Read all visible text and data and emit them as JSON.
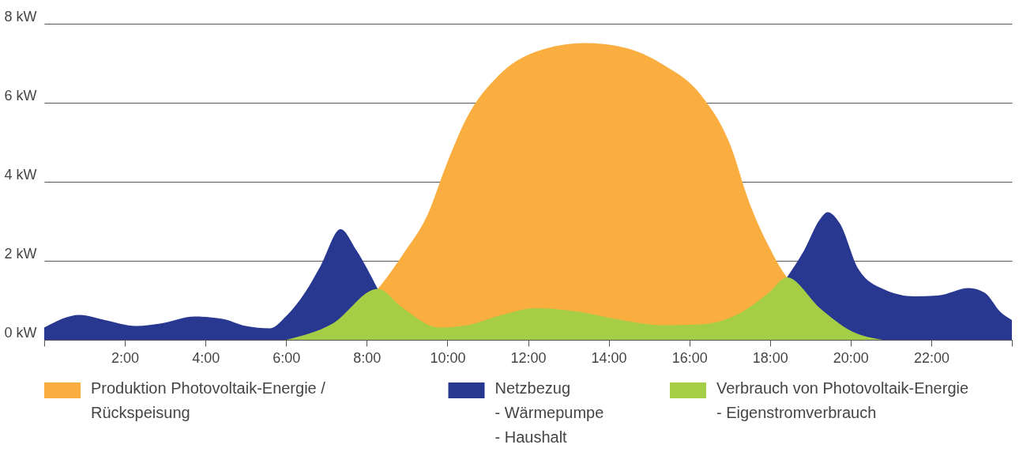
{
  "chart_data": {
    "type": "area",
    "series": [
      {
        "name": "Produktion Photovoltaik-Energie /\nRückspeisung",
        "color": "#f9ae3f",
        "x": [
          6,
          8.27,
          8.9,
          9.5,
          10,
          10.47,
          11.25,
          12.22,
          13.4,
          14.37,
          15.34,
          16.3,
          16.99,
          17.5,
          17.97,
          18.42,
          20.8
        ],
        "values": [
          0,
          1.29,
          2.17,
          3.15,
          4.5,
          5.6,
          6.67,
          7.3,
          7.51,
          7.4,
          6.97,
          6.18,
          5.0,
          3.44,
          2.37,
          1.58,
          0
        ]
      },
      {
        "name": "Netzbezug\n- Wärmepumpe\n- Haushalt",
        "color": "#283891",
        "x": [
          0,
          0.88,
          1.5,
          2.28,
          2.87,
          3.74,
          4.42,
          5.0,
          5.6,
          6.0,
          6.47,
          6.86,
          7.35,
          7.74,
          8.27,
          13,
          18.42,
          18.85,
          19.24,
          19.43,
          19.73,
          20.2,
          20.8,
          21.58,
          22.16,
          22.94,
          23.33,
          23.72,
          24
        ],
        "values": [
          0.31,
          0.63,
          0.5,
          0.35,
          0.41,
          0.59,
          0.53,
          0.35,
          0.29,
          0.6,
          1.2,
          1.88,
          2.8,
          2.27,
          1.29,
          null,
          1.58,
          2.27,
          3.05,
          3.23,
          2.95,
          1.78,
          1.29,
          1.1,
          1.12,
          1.31,
          1.19,
          0.7,
          0.5
        ]
      },
      {
        "name": "Verbrauch von Photovoltaik-Energie\n- Eigenstromverbrauch",
        "color": "#a5cd45",
        "x": [
          6,
          7.15,
          8.27,
          8.9,
          9.8,
          10.5,
          11.25,
          12.2,
          13.2,
          14.17,
          15.34,
          16.3,
          17.3,
          17.97,
          18.42,
          19.24,
          20.02,
          20.8
        ],
        "values": [
          0,
          0.41,
          1.29,
          0.8,
          0.31,
          0.37,
          0.6,
          0.8,
          0.72,
          0.53,
          0.37,
          0.39,
          0.7,
          1.19,
          1.58,
          0.8,
          0.22,
          0
        ]
      }
    ],
    "xlim": [
      0,
      24
    ],
    "xticks": [
      {
        "value": 0,
        "label": null
      },
      {
        "value": 2,
        "label": "2:00"
      },
      {
        "value": 4,
        "label": "4:00"
      },
      {
        "value": 6,
        "label": "6:00"
      },
      {
        "value": 8,
        "label": "8:00"
      },
      {
        "value": 10,
        "label": "10:00"
      },
      {
        "value": 12,
        "label": "12:00"
      },
      {
        "value": 14,
        "label": "14:00"
      },
      {
        "value": 16,
        "label": "16:00"
      },
      {
        "value": 18,
        "label": "18:00"
      },
      {
        "value": 20,
        "label": "20:00"
      },
      {
        "value": 22,
        "label": "22:00"
      },
      {
        "value": 24,
        "label": null
      }
    ],
    "ylim": [
      0,
      8
    ],
    "yticks": [
      {
        "value": 0,
        "label": "0 kW"
      },
      {
        "value": 2,
        "label": "2 kW"
      },
      {
        "value": 4,
        "label": "4 kW"
      },
      {
        "value": 6,
        "label": "6 kW"
      },
      {
        "value": 8,
        "label": "8 kW"
      }
    ],
    "grid": "y",
    "legend": "bottom"
  }
}
